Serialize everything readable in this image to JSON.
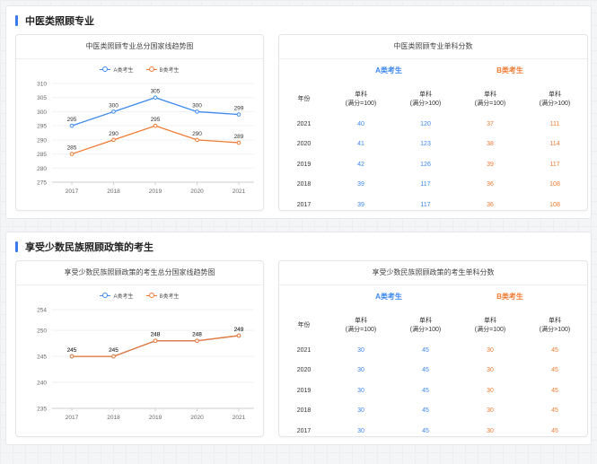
{
  "sections": [
    {
      "title": "中医类照顾专业",
      "chart_title": "中医类照顾专业总分国家线趋势图",
      "table_title": "中医类照顾专业单科分数",
      "legend": [
        "A类考生",
        "B类考生"
      ],
      "colors": {
        "a": "#3f8bf0",
        "b": "#f07a32"
      },
      "chart_data": {
        "type": "line",
        "categories": [
          "2017",
          "2018",
          "2019",
          "2020",
          "2021"
        ],
        "series": [
          {
            "name": "A类考生",
            "values": [
              295,
              300,
              305,
              300,
              299
            ]
          },
          {
            "name": "B类考生",
            "values": [
              285,
              290,
              295,
              290,
              289
            ]
          }
        ],
        "yticks": [
          275,
          280,
          285,
          290,
          295,
          300,
          305,
          310
        ],
        "ylim": [
          275,
          310
        ],
        "grid": true,
        "legend_position": "top"
      },
      "table": {
        "category_a": "A类考生",
        "category_b": "B类考生",
        "year_header": "年份",
        "col_header_line1": "单科",
        "col_header_line2": "(满分=100)",
        "col_header_line2_b": "(满分>100)",
        "rows": [
          {
            "year": "2021",
            "a1": "40",
            "a2": "120",
            "b1": "37",
            "b2": "111"
          },
          {
            "year": "2020",
            "a1": "41",
            "a2": "123",
            "b1": "38",
            "b2": "114"
          },
          {
            "year": "2019",
            "a1": "42",
            "a2": "126",
            "b1": "39",
            "b2": "117"
          },
          {
            "year": "2018",
            "a1": "39",
            "a2": "117",
            "b1": "36",
            "b2": "108"
          },
          {
            "year": "2017",
            "a1": "39",
            "a2": "117",
            "b1": "36",
            "b2": "108"
          }
        ]
      }
    },
    {
      "title": "享受少数民族照顾政策的考生",
      "chart_title": "享受少数民族照顾政策的考生总分国家线趋势图",
      "table_title": "享受少数民族照顾政策的考生单科分数",
      "legend": [
        "A类考生",
        "B类考生"
      ],
      "colors": {
        "a": "#3f8bf0",
        "b": "#f07a32"
      },
      "chart_data": {
        "type": "line",
        "categories": [
          "2017",
          "2018",
          "2019",
          "2020",
          "2021"
        ],
        "series": [
          {
            "name": "A类考生",
            "values": [
              245,
              245,
              248,
              248,
              249
            ]
          },
          {
            "name": "B类考生",
            "values": [
              245,
              245,
              248,
              248,
              249
            ]
          }
        ],
        "yticks": [
          235,
          240,
          245,
          250,
          254
        ],
        "ylim": [
          235,
          254
        ],
        "grid": true,
        "legend_position": "top"
      },
      "table": {
        "category_a": "A类考生",
        "category_b": "B类考生",
        "year_header": "年份",
        "col_header_line1": "单科",
        "col_header_line2": "(满分=100)",
        "col_header_line2_b": "(满分>100)",
        "rows": [
          {
            "year": "2021",
            "a1": "30",
            "a2": "45",
            "b1": "30",
            "b2": "45"
          },
          {
            "year": "2020",
            "a1": "30",
            "a2": "45",
            "b1": "30",
            "b2": "45"
          },
          {
            "year": "2019",
            "a1": "30",
            "a2": "45",
            "b1": "30",
            "b2": "45"
          },
          {
            "year": "2018",
            "a1": "30",
            "a2": "45",
            "b1": "30",
            "b2": "45"
          },
          {
            "year": "2017",
            "a1": "30",
            "a2": "45",
            "b1": "30",
            "b2": "45"
          }
        ]
      }
    }
  ]
}
